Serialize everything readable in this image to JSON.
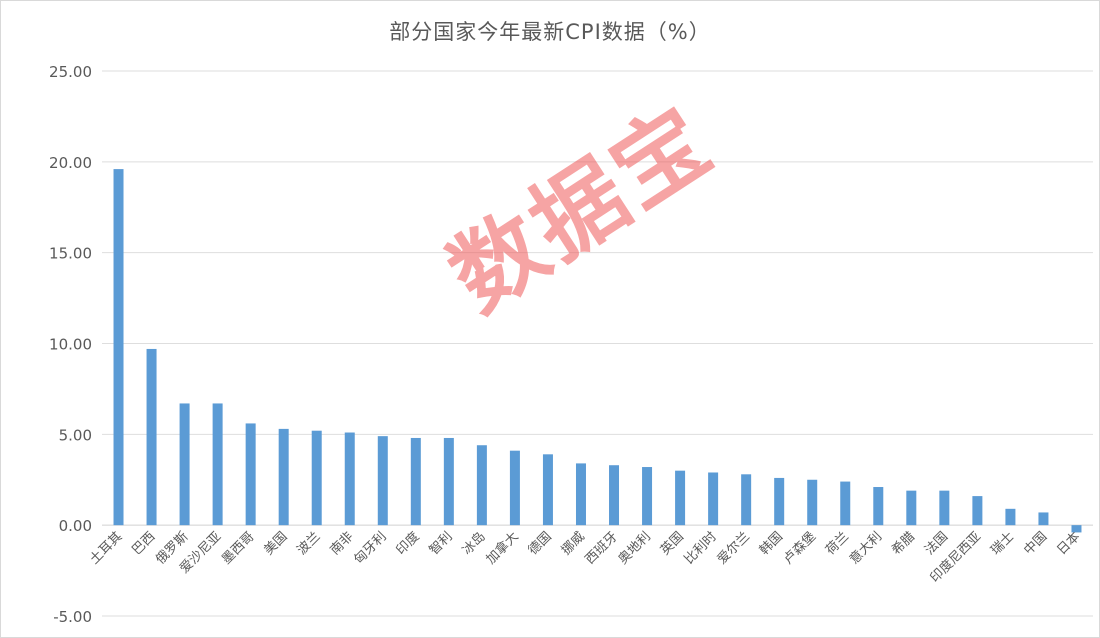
{
  "chart_data": {
    "type": "bar",
    "title": "部分国家今年最新CPI数据（%）",
    "ylim": [
      -5,
      25
    ],
    "yticks": [
      "-5.00",
      "0.00",
      "5.00",
      "10.00",
      "15.00",
      "20.00",
      "25.00"
    ],
    "ytick_values": [
      -5,
      0,
      5,
      10,
      15,
      20,
      25
    ],
    "grid": true,
    "bar_color": "#5b9bd5",
    "categories": [
      "土耳其",
      "巴西",
      "俄罗斯",
      "爱沙尼亚",
      "墨西哥",
      "美国",
      "波兰",
      "南非",
      "匈牙利",
      "印度",
      "智利",
      "冰岛",
      "加拿大",
      "德国",
      "挪威",
      "西班牙",
      "奥地利",
      "英国",
      "比利时",
      "爱尔兰",
      "韩国",
      "卢森堡",
      "荷兰",
      "意大利",
      "希腊",
      "法国",
      "印度尼西亚",
      "瑞士",
      "中国",
      "日本"
    ],
    "values": [
      19.6,
      9.7,
      6.7,
      6.7,
      5.6,
      5.3,
      5.2,
      5.1,
      4.9,
      4.8,
      4.8,
      4.4,
      4.1,
      3.9,
      3.4,
      3.3,
      3.2,
      3.0,
      2.9,
      2.8,
      2.6,
      2.5,
      2.4,
      2.1,
      1.9,
      1.9,
      1.6,
      0.9,
      0.7,
      -0.4
    ]
  },
  "watermark": "数据宝"
}
